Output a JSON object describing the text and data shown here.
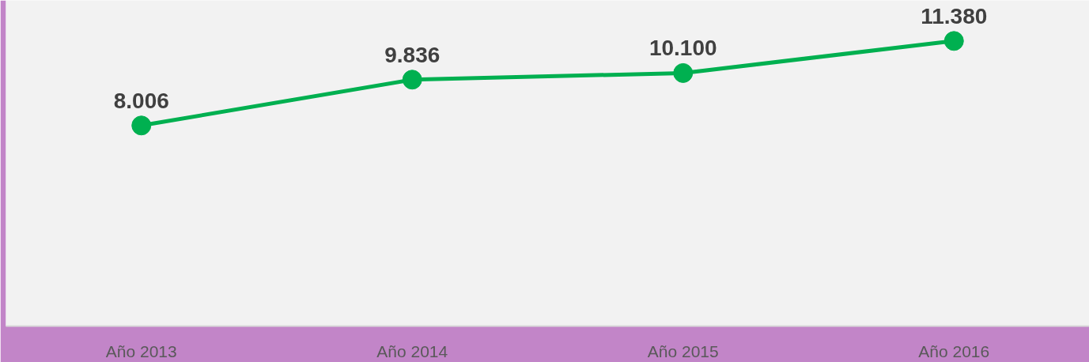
{
  "chart_data": {
    "type": "line",
    "categories": [
      "Año 2013",
      "Año 2014",
      "Año 2015",
      "Año 2016"
    ],
    "series": [
      {
        "color": "#00b050",
        "values": [
          8006,
          9836,
          10100,
          11380
        ],
        "value_labels": [
          "8.006",
          "9.836",
          "10.100",
          "11.380"
        ]
      }
    ],
    "ylim": [
      0,
      13000
    ],
    "marker": "circle",
    "line_style": "solid",
    "grid": false,
    "tick_labels": "x"
  }
}
